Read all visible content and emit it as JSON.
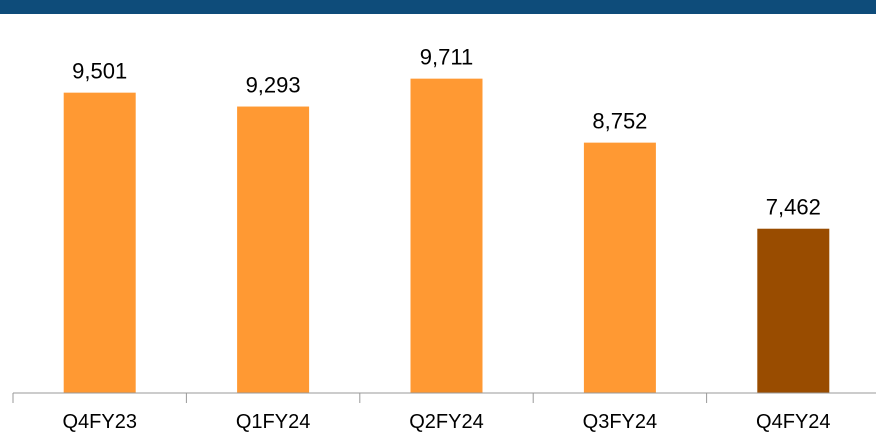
{
  "chart_data": {
    "type": "bar",
    "categories": [
      "Q4FY23",
      "Q1FY24",
      "Q2FY24",
      "Q3FY24",
      "Q4FY24"
    ],
    "values": [
      9501,
      9293,
      9711,
      8752,
      7462
    ],
    "value_labels": [
      "9,501",
      "9,293",
      "9,711",
      "8,752",
      "7,462"
    ],
    "colors": [
      "#ff9933",
      "#ff9933",
      "#ff9933",
      "#ff9933",
      "#994c00"
    ],
    "ylim": [
      5000,
      10500
    ]
  }
}
